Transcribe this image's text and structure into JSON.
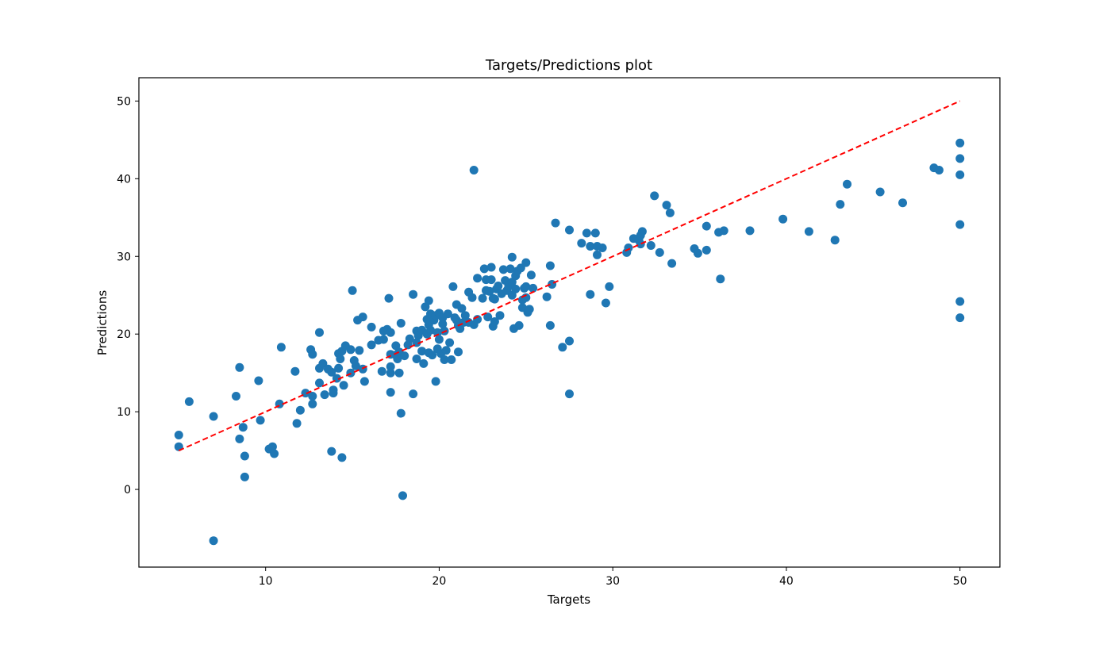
{
  "chart_data": {
    "type": "scatter",
    "title": "Targets/Predictions plot",
    "xlabel": "Targets",
    "ylabel": "Predictions",
    "xlim": [
      2.7,
      52.3
    ],
    "ylim": [
      -10,
      53
    ],
    "xticks": [
      "10",
      "20",
      "30",
      "40",
      "50"
    ],
    "yticks": [
      "0",
      "10",
      "20",
      "30",
      "40",
      "50"
    ],
    "grid": false,
    "point_color": "#1f77b4",
    "reference_line": {
      "color": "#ff0000",
      "style": "dashed",
      "x": [
        5,
        50
      ],
      "y": [
        5,
        50
      ]
    },
    "points": [
      [
        5.0,
        7.0
      ],
      [
        5.0,
        5.5
      ],
      [
        5.6,
        11.3
      ],
      [
        7.0,
        9.4
      ],
      [
        7.0,
        -6.6
      ],
      [
        8.3,
        12.0
      ],
      [
        8.5,
        15.7
      ],
      [
        8.5,
        6.5
      ],
      [
        8.7,
        8.0
      ],
      [
        8.8,
        4.3
      ],
      [
        8.8,
        1.6
      ],
      [
        9.6,
        14.0
      ],
      [
        9.7,
        8.9
      ],
      [
        10.2,
        5.2
      ],
      [
        10.4,
        5.5
      ],
      [
        10.5,
        4.6
      ],
      [
        10.8,
        11.0
      ],
      [
        10.9,
        18.3
      ],
      [
        11.7,
        15.2
      ],
      [
        11.8,
        8.5
      ],
      [
        12.0,
        10.2
      ],
      [
        12.3,
        12.4
      ],
      [
        12.6,
        18.0
      ],
      [
        12.7,
        17.4
      ],
      [
        12.7,
        11.0
      ],
      [
        12.7,
        12.0
      ],
      [
        13.1,
        20.2
      ],
      [
        13.1,
        15.6
      ],
      [
        13.1,
        13.7
      ],
      [
        13.3,
        16.2
      ],
      [
        13.4,
        12.2
      ],
      [
        13.6,
        15.5
      ],
      [
        13.8,
        4.9
      ],
      [
        13.8,
        15.1
      ],
      [
        13.9,
        12.8
      ],
      [
        13.9,
        12.4
      ],
      [
        14.1,
        14.3
      ],
      [
        14.2,
        17.5
      ],
      [
        14.2,
        15.6
      ],
      [
        14.3,
        16.8
      ],
      [
        14.4,
        17.8
      ],
      [
        14.4,
        4.1
      ],
      [
        14.5,
        13.4
      ],
      [
        14.6,
        18.5
      ],
      [
        14.9,
        18.0
      ],
      [
        14.9,
        15.0
      ],
      [
        15.0,
        25.6
      ],
      [
        15.1,
        16.6
      ],
      [
        15.2,
        15.9
      ],
      [
        15.3,
        21.8
      ],
      [
        15.4,
        17.9
      ],
      [
        15.6,
        22.2
      ],
      [
        15.6,
        15.5
      ],
      [
        15.7,
        13.9
      ],
      [
        16.1,
        18.6
      ],
      [
        16.1,
        20.9
      ],
      [
        16.5,
        19.2
      ],
      [
        16.7,
        15.2
      ],
      [
        16.8,
        20.4
      ],
      [
        16.8,
        19.3
      ],
      [
        17.0,
        20.6
      ],
      [
        17.1,
        24.6
      ],
      [
        17.2,
        20.2
      ],
      [
        17.2,
        17.4
      ],
      [
        17.2,
        15.8
      ],
      [
        17.2,
        15.0
      ],
      [
        17.2,
        12.5
      ],
      [
        17.5,
        17.3
      ],
      [
        17.5,
        18.5
      ],
      [
        17.6,
        16.8
      ],
      [
        17.7,
        15.0
      ],
      [
        17.7,
        17.7
      ],
      [
        17.8,
        21.4
      ],
      [
        17.8,
        9.8
      ],
      [
        17.9,
        -0.8
      ],
      [
        18.0,
        17.2
      ],
      [
        18.2,
        18.6
      ],
      [
        18.3,
        19.4
      ],
      [
        18.5,
        25.1
      ],
      [
        18.5,
        12.3
      ],
      [
        18.7,
        20.4
      ],
      [
        18.7,
        18.9
      ],
      [
        18.7,
        16.8
      ],
      [
        18.8,
        19.8
      ],
      [
        19.0,
        20.5
      ],
      [
        19.0,
        17.8
      ],
      [
        19.1,
        16.2
      ],
      [
        19.2,
        23.5
      ],
      [
        19.3,
        20.0
      ],
      [
        19.3,
        21.9
      ],
      [
        19.4,
        24.3
      ],
      [
        19.4,
        21.2
      ],
      [
        19.4,
        17.6
      ],
      [
        19.5,
        20.5
      ],
      [
        19.5,
        22.6
      ],
      [
        19.6,
        17.3
      ],
      [
        19.7,
        21.8
      ],
      [
        19.8,
        13.9
      ],
      [
        19.8,
        22.4
      ],
      [
        19.9,
        20.2
      ],
      [
        19.9,
        18.1
      ],
      [
        20.0,
        19.3
      ],
      [
        20.0,
        22.7
      ],
      [
        20.1,
        17.5
      ],
      [
        20.2,
        21.3
      ],
      [
        20.2,
        22.1
      ],
      [
        20.3,
        20.4
      ],
      [
        20.3,
        16.7
      ],
      [
        20.4,
        17.9
      ],
      [
        20.5,
        22.6
      ],
      [
        20.6,
        18.9
      ],
      [
        20.7,
        16.7
      ],
      [
        20.8,
        26.1
      ],
      [
        20.9,
        22.1
      ],
      [
        21.0,
        21.8
      ],
      [
        21.0,
        23.8
      ],
      [
        21.1,
        17.7
      ],
      [
        21.1,
        21.1
      ],
      [
        21.2,
        20.7
      ],
      [
        21.3,
        23.3
      ],
      [
        21.4,
        21.5
      ],
      [
        21.5,
        22.4
      ],
      [
        21.7,
        25.4
      ],
      [
        21.7,
        21.5
      ],
      [
        21.9,
        24.7
      ],
      [
        22.0,
        21.2
      ],
      [
        22.0,
        41.1
      ],
      [
        22.2,
        21.9
      ],
      [
        22.2,
        27.2
      ],
      [
        22.5,
        24.6
      ],
      [
        22.6,
        28.4
      ],
      [
        22.7,
        25.6
      ],
      [
        22.7,
        27.0
      ],
      [
        22.8,
        22.2
      ],
      [
        22.9,
        25.5
      ],
      [
        23.0,
        27.0
      ],
      [
        23.0,
        28.6
      ],
      [
        23.1,
        24.6
      ],
      [
        23.1,
        21.0
      ],
      [
        23.2,
        21.6
      ],
      [
        23.2,
        24.5
      ],
      [
        23.3,
        25.8
      ],
      [
        23.4,
        26.2
      ],
      [
        23.5,
        22.4
      ],
      [
        23.6,
        25.2
      ],
      [
        23.7,
        28.3
      ],
      [
        23.8,
        26.9
      ],
      [
        23.9,
        25.6
      ],
      [
        24.0,
        26.2
      ],
      [
        24.1,
        28.4
      ],
      [
        24.2,
        25.0
      ],
      [
        24.2,
        29.9
      ],
      [
        24.2,
        26.7
      ],
      [
        24.3,
        20.7
      ],
      [
        24.4,
        27.5
      ],
      [
        24.4,
        25.8
      ],
      [
        24.5,
        28.1
      ],
      [
        24.6,
        21.1
      ],
      [
        24.7,
        28.5
      ],
      [
        24.8,
        24.4
      ],
      [
        24.8,
        23.4
      ],
      [
        24.9,
        25.9
      ],
      [
        25.0,
        24.7
      ],
      [
        25.0,
        26.1
      ],
      [
        25.0,
        29.2
      ],
      [
        25.1,
        22.8
      ],
      [
        25.2,
        23.2
      ],
      [
        25.3,
        27.6
      ],
      [
        25.4,
        25.9
      ],
      [
        26.2,
        24.8
      ],
      [
        26.4,
        28.8
      ],
      [
        26.4,
        21.1
      ],
      [
        26.5,
        26.4
      ],
      [
        26.7,
        34.3
      ],
      [
        27.1,
        18.3
      ],
      [
        27.5,
        33.4
      ],
      [
        27.5,
        19.1
      ],
      [
        27.5,
        12.3
      ],
      [
        28.2,
        31.7
      ],
      [
        28.5,
        33.0
      ],
      [
        28.7,
        25.1
      ],
      [
        28.7,
        31.3
      ],
      [
        29.0,
        33.0
      ],
      [
        29.1,
        30.2
      ],
      [
        29.1,
        31.3
      ],
      [
        29.4,
        31.1
      ],
      [
        29.6,
        24.0
      ],
      [
        29.8,
        26.1
      ],
      [
        30.8,
        30.5
      ],
      [
        30.9,
        31.1
      ],
      [
        31.2,
        32.3
      ],
      [
        31.5,
        32.1
      ],
      [
        31.6,
        31.6
      ],
      [
        31.6,
        32.7
      ],
      [
        31.7,
        33.2
      ],
      [
        32.2,
        31.4
      ],
      [
        32.4,
        37.8
      ],
      [
        32.7,
        30.5
      ],
      [
        33.1,
        36.6
      ],
      [
        33.3,
        35.6
      ],
      [
        33.4,
        29.1
      ],
      [
        34.7,
        31.0
      ],
      [
        34.9,
        30.4
      ],
      [
        35.4,
        33.9
      ],
      [
        35.4,
        30.8
      ],
      [
        36.1,
        33.1
      ],
      [
        36.2,
        27.1
      ],
      [
        36.4,
        33.3
      ],
      [
        37.9,
        33.3
      ],
      [
        39.8,
        34.8
      ],
      [
        41.3,
        33.2
      ],
      [
        42.8,
        32.1
      ],
      [
        43.1,
        36.7
      ],
      [
        43.5,
        39.3
      ],
      [
        45.4,
        38.3
      ],
      [
        46.7,
        36.9
      ],
      [
        48.5,
        41.4
      ],
      [
        48.8,
        41.1
      ],
      [
        50.0,
        44.6
      ],
      [
        50.0,
        42.6
      ],
      [
        50.0,
        40.5
      ],
      [
        50.0,
        34.1
      ],
      [
        50.0,
        24.2
      ],
      [
        50.0,
        22.1
      ]
    ]
  }
}
